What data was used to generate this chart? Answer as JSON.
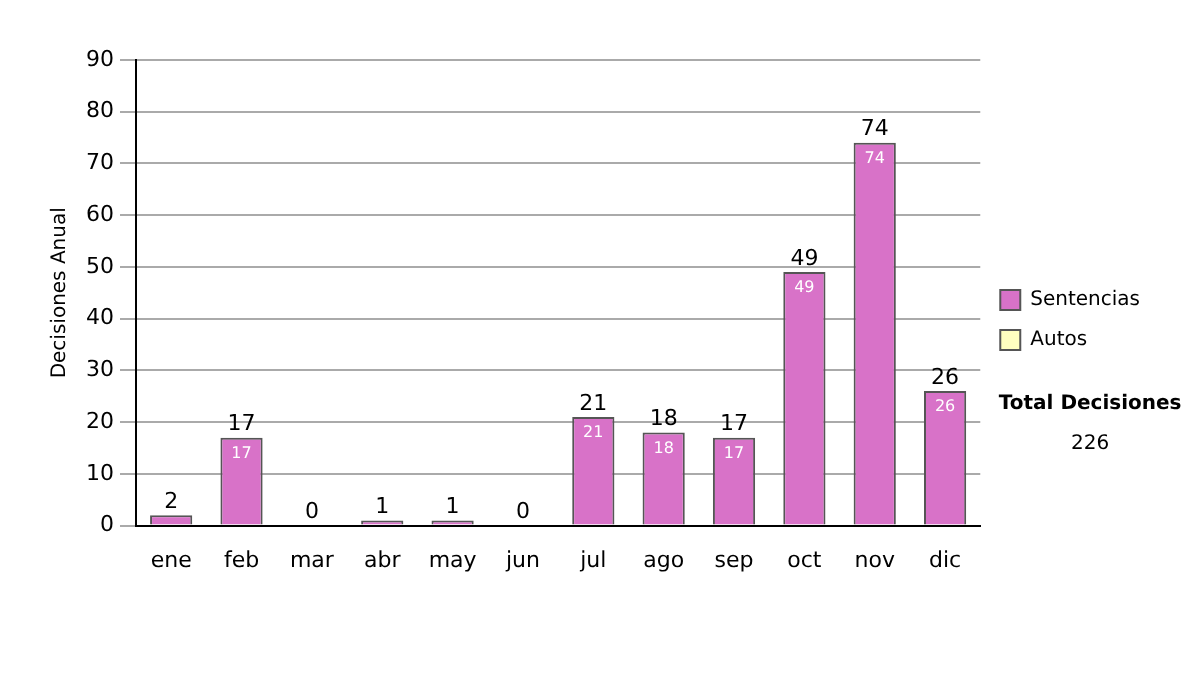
{
  "chart_data": {
    "type": "bar",
    "stacked": true,
    "ylabel": "Decisiones Anual",
    "categories": [
      "ene",
      "feb",
      "mar",
      "abr",
      "may",
      "jun",
      "jul",
      "ago",
      "sep",
      "oct",
      "nov",
      "dic"
    ],
    "series": [
      {
        "name": "Sentencias",
        "color": "#d872c8",
        "values": [
          2,
          17,
          0,
          1,
          1,
          0,
          21,
          18,
          17,
          49,
          74,
          26
        ],
        "value_labels": [
          null,
          "17",
          null,
          null,
          null,
          null,
          "21",
          "18",
          "17",
          "49",
          "74",
          "26"
        ]
      },
      {
        "name": "Autos",
        "color": "#ffffc0",
        "values": [
          0,
          0,
          0,
          0,
          0,
          0,
          0,
          0,
          0,
          0,
          0,
          0
        ]
      }
    ],
    "totals": [
      "2",
      "17",
      "0",
      "1",
      "1",
      "0",
      "21",
      "18",
      "17",
      "49",
      "74",
      "26"
    ],
    "ylim": [
      0,
      90
    ],
    "yticks": [
      0,
      10,
      20,
      30,
      40,
      50,
      60,
      70,
      80,
      90
    ],
    "grid": "y",
    "legend": "right",
    "annotations": [
      "Total Decisiones",
      "226"
    ]
  }
}
